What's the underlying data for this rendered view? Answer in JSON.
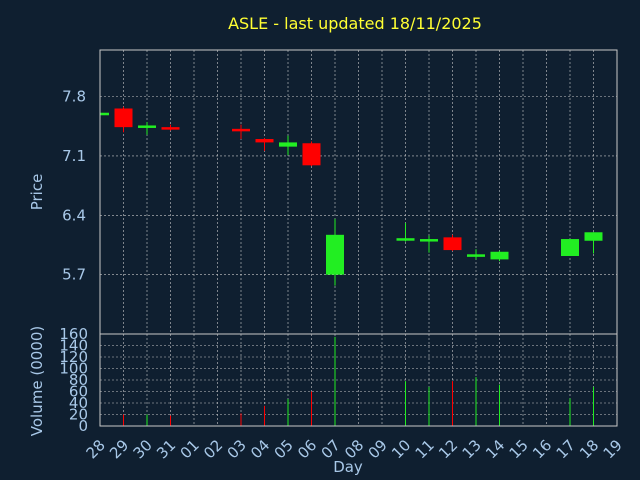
{
  "title": "ASLE - last updated 18/11/2025",
  "colors": {
    "background": "#0f1f30",
    "title": "#ffff33",
    "axis_text": "#a8c8e8",
    "up": "#22ee22",
    "down": "#ff0000",
    "grid": "#c8c8c8",
    "frame": "#c8c8c8"
  },
  "chart_data": [
    {
      "type": "candlestick",
      "ylabel": "Price",
      "ylim": [
        5.0,
        8.35
      ],
      "yticks": [
        "7.8",
        "7.1",
        "6.4",
        "5.7"
      ],
      "ytick_values": [
        7.8,
        7.1,
        6.4,
        5.7
      ],
      "grid": true,
      "x_categories": [
        "28",
        "29",
        "30",
        "31",
        "01",
        "02",
        "03",
        "04",
        "05",
        "06",
        "07",
        "08",
        "09",
        "10",
        "11",
        "12",
        "13",
        "14",
        "15",
        "16",
        "17",
        "18",
        "19"
      ],
      "candles": [
        {
          "day": "28",
          "open": 7.58,
          "close": 7.61,
          "high": 7.62,
          "low": 7.57
        },
        {
          "day": "29",
          "open": 7.66,
          "close": 7.44,
          "high": 7.68,
          "low": 7.38
        },
        {
          "day": "30",
          "open": 7.44,
          "close": 7.46,
          "high": 7.5,
          "low": 7.35
        },
        {
          "day": "31",
          "open": 7.44,
          "close": 7.42,
          "high": 7.47,
          "low": 7.4
        },
        {
          "day": "03",
          "open": 7.42,
          "close": 7.41,
          "high": 7.47,
          "low": 7.3
        },
        {
          "day": "04",
          "open": 7.3,
          "close": 7.26,
          "high": 7.31,
          "low": 7.16
        },
        {
          "day": "05",
          "open": 7.21,
          "close": 7.26,
          "high": 7.34,
          "low": 7.11
        },
        {
          "day": "06",
          "open": 7.25,
          "close": 6.99,
          "high": 7.27,
          "low": 6.98
        },
        {
          "day": "07",
          "open": 5.7,
          "close": 6.17,
          "high": 6.36,
          "low": 5.57
        },
        {
          "day": "10",
          "open": 6.11,
          "close": 6.13,
          "high": 6.31,
          "low": 6.09
        },
        {
          "day": "11",
          "open": 6.1,
          "close": 6.12,
          "high": 6.16,
          "low": 5.96
        },
        {
          "day": "12",
          "open": 6.14,
          "close": 5.99,
          "high": 6.17,
          "low": 5.98
        },
        {
          "day": "13",
          "open": 5.91,
          "close": 5.94,
          "high": 6.0,
          "low": 5.88
        },
        {
          "day": "14",
          "open": 5.88,
          "close": 5.97,
          "high": 5.98,
          "low": 5.86
        },
        {
          "day": "17",
          "open": 5.92,
          "close": 6.12,
          "high": 6.12,
          "low": 5.92
        },
        {
          "day": "18",
          "open": 6.1,
          "close": 6.2,
          "high": 6.2,
          "low": 5.95
        }
      ]
    },
    {
      "type": "bar",
      "ylabel": "Volume (0000)",
      "xlabel": "Day",
      "ylim": [
        0,
        160
      ],
      "yticks": [
        "160",
        "140",
        "120",
        "100",
        "80",
        "60",
        "40",
        "20",
        "0"
      ],
      "ytick_values": [
        160,
        140,
        120,
        100,
        80,
        60,
        40,
        20,
        0
      ],
      "grid": true,
      "bars": [
        {
          "day": "28",
          "value": 3,
          "dir": "up"
        },
        {
          "day": "29",
          "value": 20,
          "dir": "down"
        },
        {
          "day": "30",
          "value": 20,
          "dir": "up"
        },
        {
          "day": "31",
          "value": 18,
          "dir": "down"
        },
        {
          "day": "03",
          "value": 22,
          "dir": "down"
        },
        {
          "day": "04",
          "value": 35,
          "dir": "down"
        },
        {
          "day": "05",
          "value": 47,
          "dir": "up"
        },
        {
          "day": "06",
          "value": 60,
          "dir": "down"
        },
        {
          "day": "07",
          "value": 155,
          "dir": "up"
        },
        {
          "day": "10",
          "value": 78,
          "dir": "up"
        },
        {
          "day": "11",
          "value": 68,
          "dir": "up"
        },
        {
          "day": "12",
          "value": 78,
          "dir": "down"
        },
        {
          "day": "13",
          "value": 85,
          "dir": "up"
        },
        {
          "day": "14",
          "value": 72,
          "dir": "up"
        },
        {
          "day": "17",
          "value": 48,
          "dir": "up"
        },
        {
          "day": "18",
          "value": 68,
          "dir": "up"
        }
      ]
    }
  ]
}
